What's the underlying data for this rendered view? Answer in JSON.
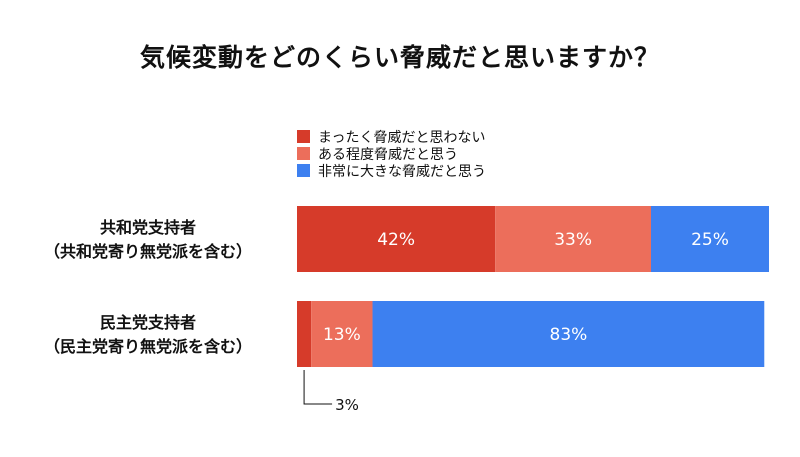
{
  "chart_data": {
    "type": "bar",
    "orientation": "horizontal",
    "stacked": true,
    "title": "気候変動をどのくらい脅威だと思いますか？",
    "legend_position": "top",
    "categories": [
      [
        "共和党支持者",
        "（共和党寄り無党派を含む）"
      ],
      [
        "民主党支持者",
        "（民主党寄り無党派を含む）"
      ]
    ],
    "series": [
      {
        "name": "まったく脅威だと思わない",
        "color": "#d63b2a",
        "values": [
          42,
          3
        ],
        "labels": [
          "42%",
          ""
        ]
      },
      {
        "name": "ある程度脅威だと思う",
        "color": "#ec6e5b",
        "values": [
          33,
          13
        ],
        "labels": [
          "33%",
          "13%"
        ]
      },
      {
        "name": "非常に大きな脅威だと思う",
        "color": "#3d80f0",
        "values": [
          25,
          83
        ],
        "labels": [
          "25%",
          "83%"
        ]
      }
    ],
    "annotations": [
      {
        "category_index": 1,
        "series_index": 0,
        "text": "3%"
      }
    ],
    "xlim": [
      0,
      100
    ]
  }
}
